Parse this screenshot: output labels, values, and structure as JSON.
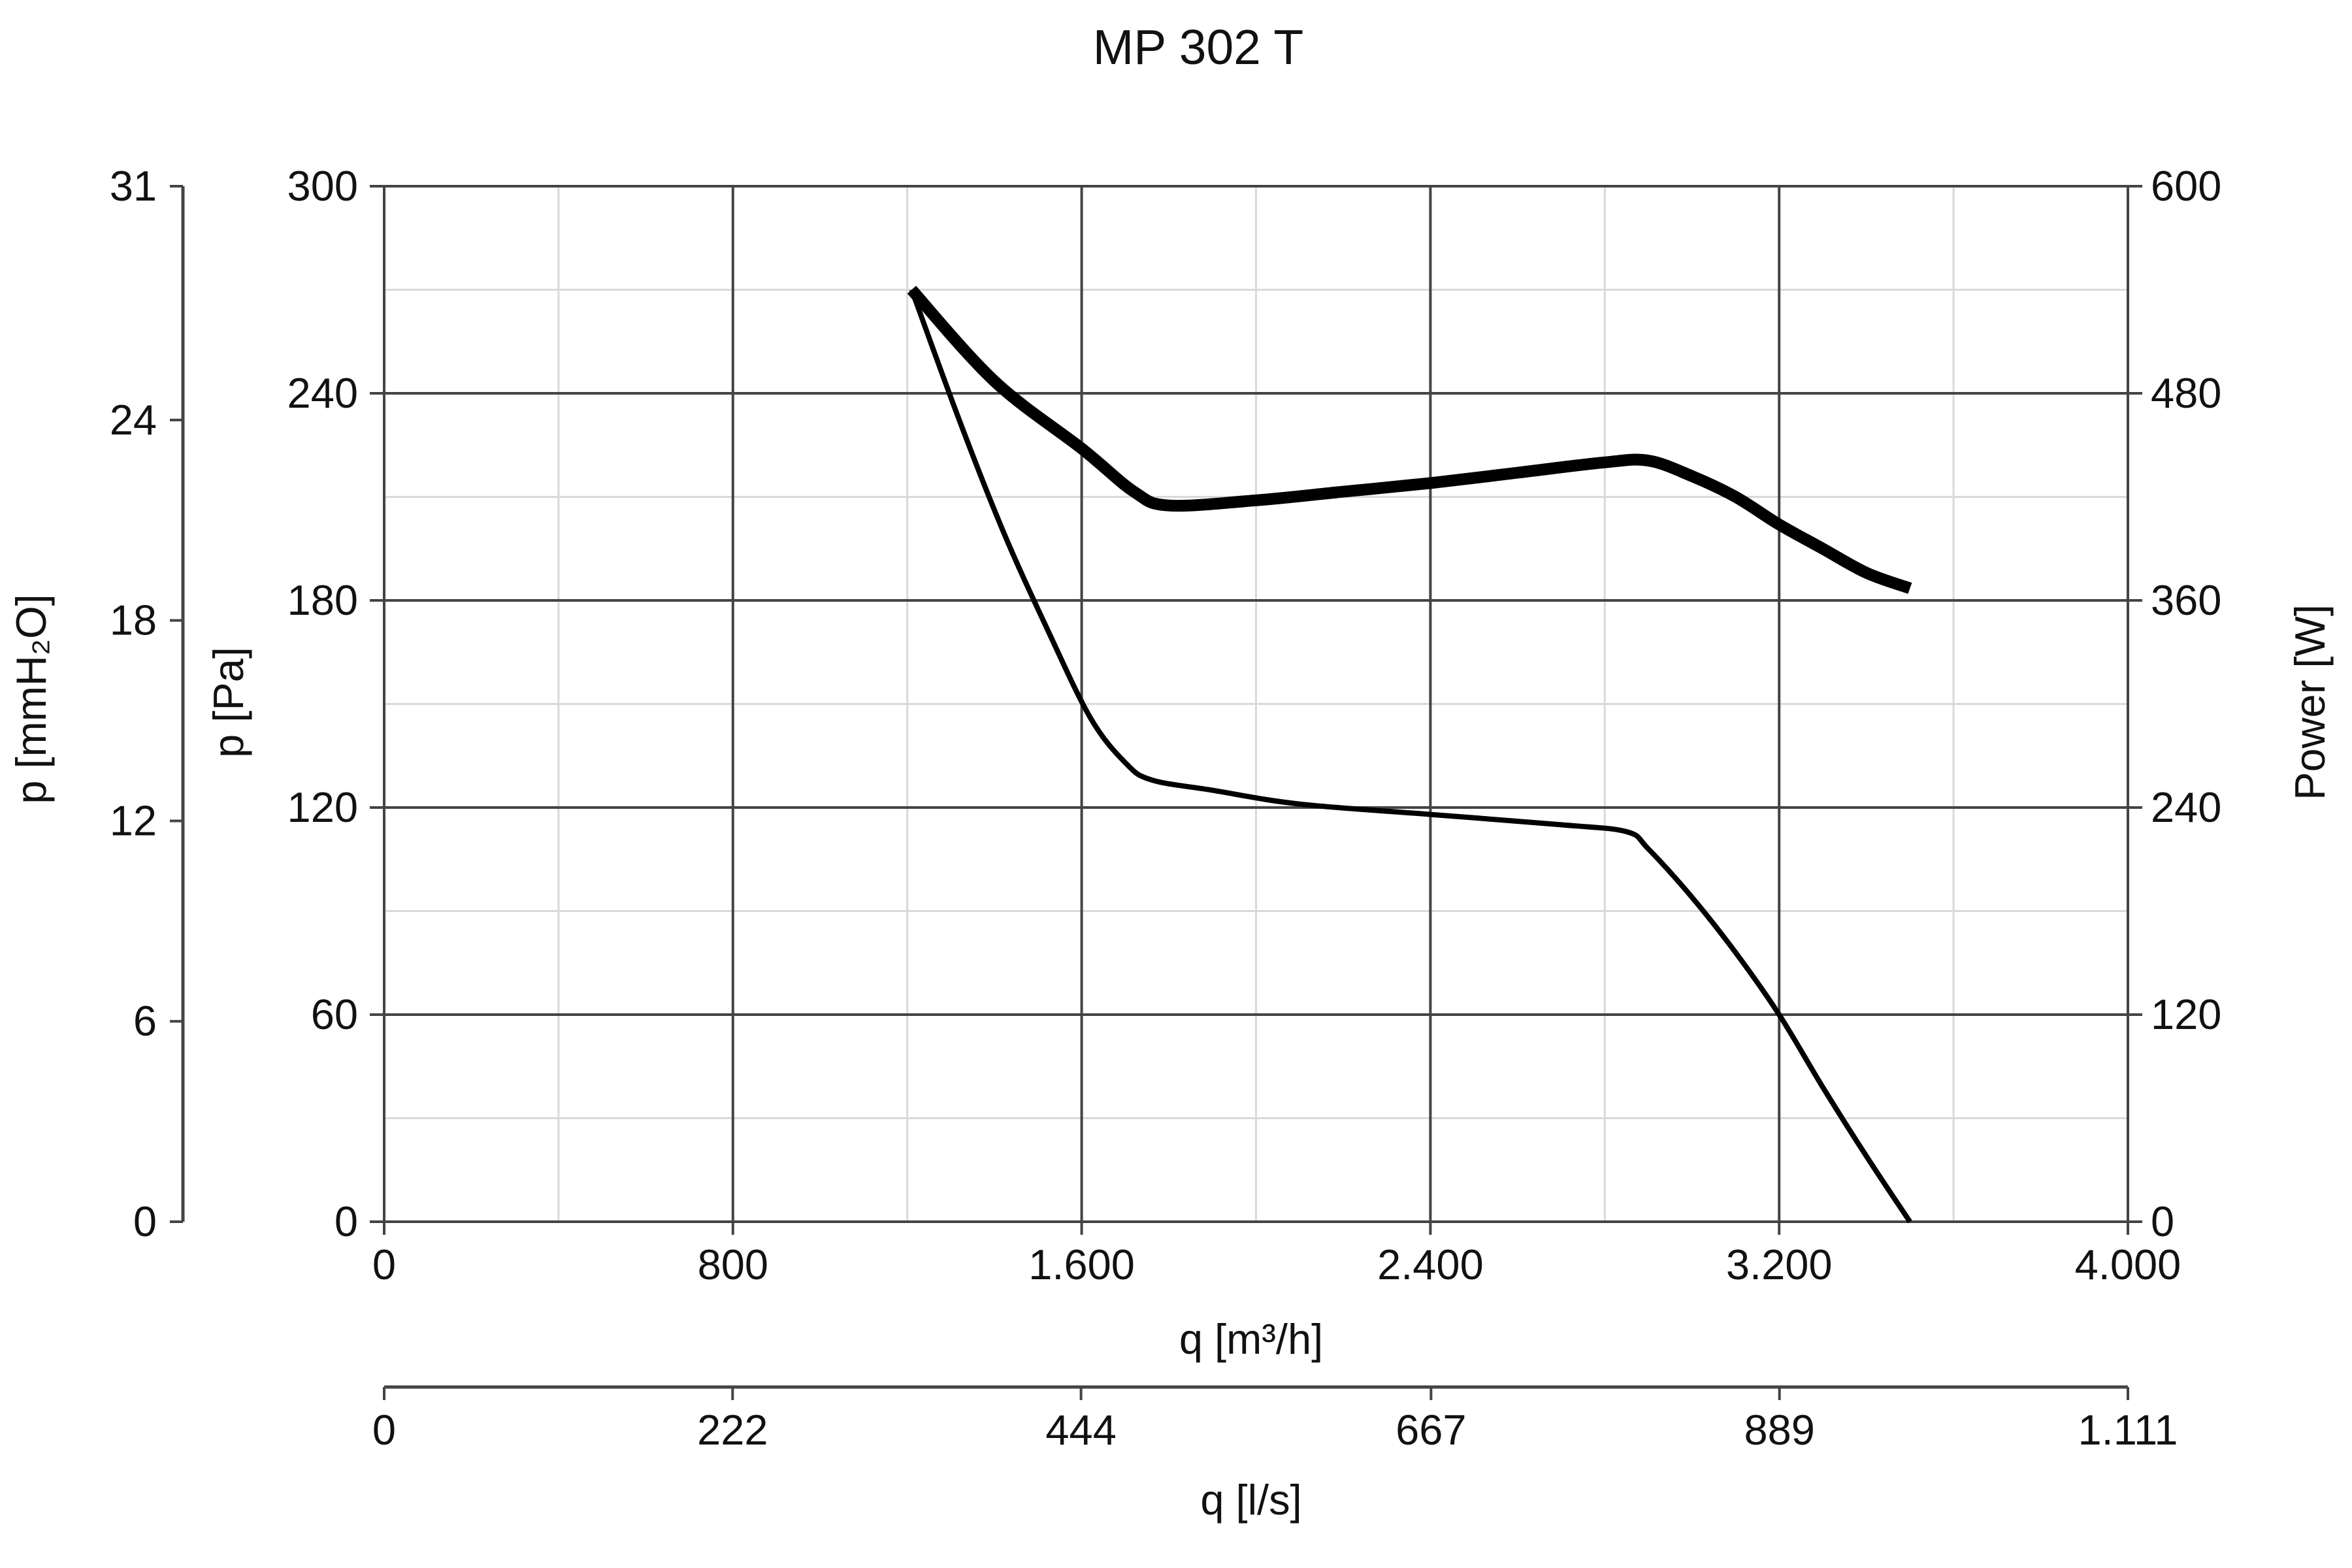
{
  "chart_data": {
    "type": "line",
    "title": "MP 302 T",
    "grid": true,
    "x": {
      "label": "q [m³/h]",
      "range": [
        0,
        4000
      ],
      "ticks": [
        0,
        800,
        1600,
        2400,
        3200,
        4000
      ],
      "tick_labels": [
        "0",
        "800",
        "1.600",
        "2.400",
        "3.200",
        "4.000"
      ]
    },
    "x2": {
      "label": "q [l/s]",
      "range": [
        0,
        1111
      ],
      "ticks": [
        0,
        222,
        444,
        667,
        889,
        1111
      ],
      "tick_labels": [
        "0",
        "222",
        "444",
        "667",
        "889",
        "1.111"
      ]
    },
    "y_left_outer": {
      "label": "p [mmH₂O]",
      "range": [
        0,
        31
      ],
      "ticks": [
        0,
        6,
        12,
        18,
        24,
        31
      ],
      "tick_labels": [
        "0",
        "6",
        "12",
        "18",
        "24",
        "31"
      ]
    },
    "y_left": {
      "label": "p [Pa]",
      "range": [
        0,
        300
      ],
      "ticks": [
        0,
        60,
        120,
        180,
        240,
        300
      ],
      "tick_labels": [
        "0",
        "60",
        "120",
        "180",
        "240",
        "300"
      ]
    },
    "y_right": {
      "label": "Power [W]",
      "range": [
        0,
        600
      ],
      "ticks": [
        0,
        120,
        240,
        360,
        480,
        600
      ],
      "tick_labels": [
        "0",
        "120",
        "240",
        "360",
        "480",
        "600"
      ]
    },
    "series": [
      {
        "axis": "y_left",
        "style": "thin",
        "color": "#000000",
        "points": [
          [
            1210,
            270
          ],
          [
            1320,
            232
          ],
          [
            1420,
            200
          ],
          [
            1520,
            172
          ],
          [
            1620,
            146
          ],
          [
            1700,
            133
          ],
          [
            1760,
            128
          ],
          [
            1900,
            125
          ],
          [
            2100,
            121
          ],
          [
            2400,
            118
          ],
          [
            2700,
            115
          ],
          [
            2850,
            113
          ],
          [
            2900,
            108
          ],
          [
            3000,
            94
          ],
          [
            3100,
            78
          ],
          [
            3200,
            60
          ],
          [
            3300,
            39
          ],
          [
            3400,
            19
          ],
          [
            3500,
            0
          ]
        ]
      },
      {
        "axis": "y_right",
        "style": "thick",
        "color": "#000000",
        "points": [
          [
            1210,
            540
          ],
          [
            1400,
            487
          ],
          [
            1600,
            448
          ],
          [
            1720,
            423
          ],
          [
            1800,
            415
          ],
          [
            2000,
            418
          ],
          [
            2200,
            423
          ],
          [
            2400,
            428
          ],
          [
            2600,
            434
          ],
          [
            2800,
            440
          ],
          [
            2900,
            441
          ],
          [
            3000,
            432
          ],
          [
            3100,
            420
          ],
          [
            3200,
            404
          ],
          [
            3300,
            390
          ],
          [
            3400,
            376
          ],
          [
            3500,
            367
          ]
        ]
      }
    ]
  }
}
